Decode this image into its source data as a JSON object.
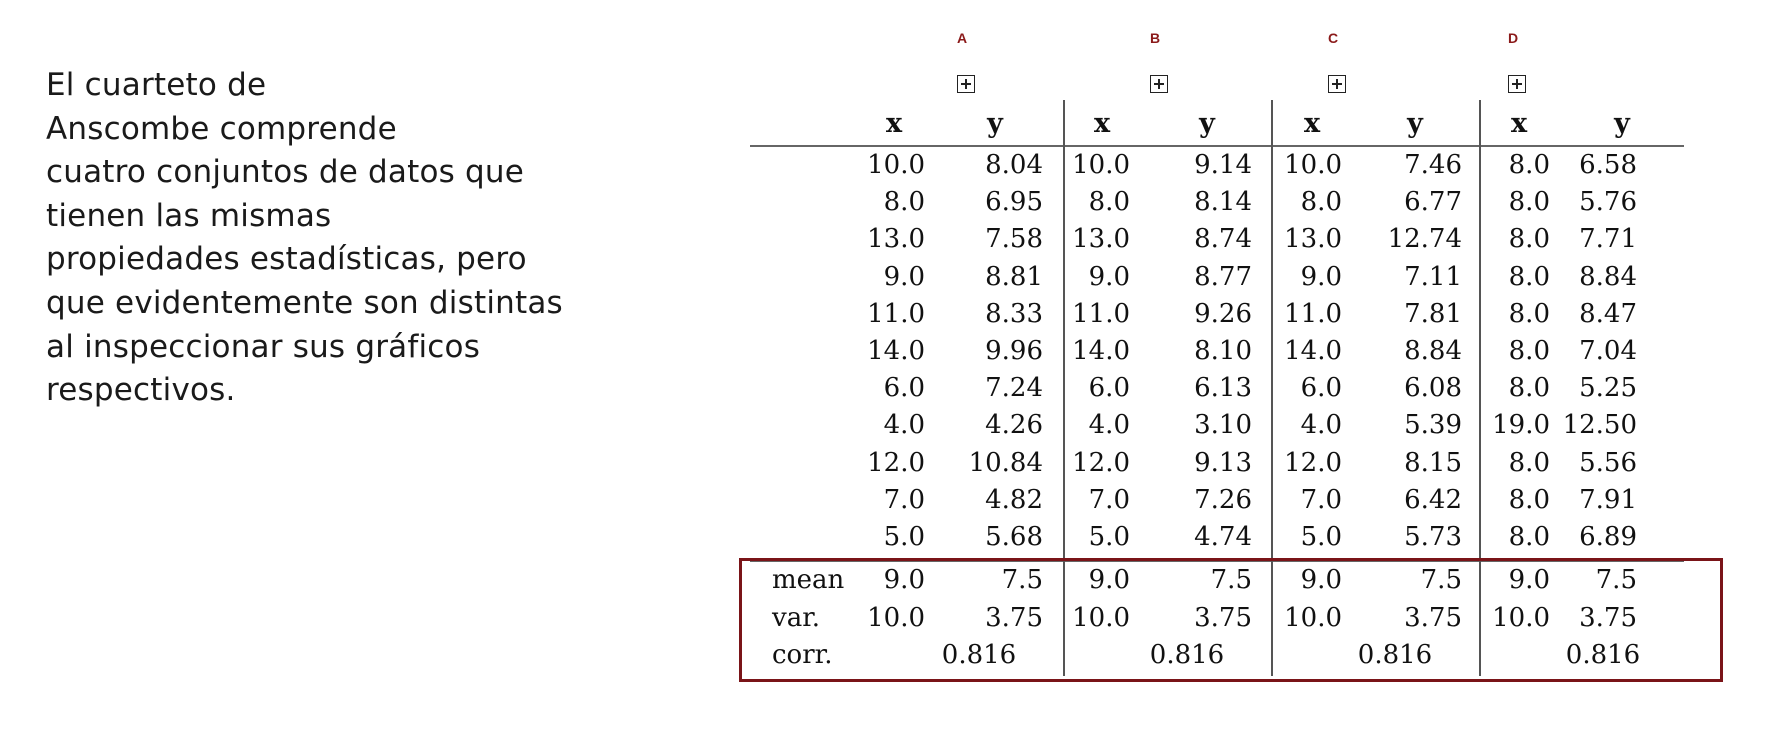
{
  "intro_lines": [
    "El cuarteto de",
    "Anscombe comprende",
    "cuatro conjuntos de datos que",
    "tienen las mismas",
    "propiedades estadísticas, pero",
    "que evidentemente son distintas",
    "al inspeccionar sus gráficos",
    "respectivos."
  ],
  "sets": [
    "A",
    "B",
    "C",
    "D"
  ],
  "icons": {
    "expand": "expand-plus-box-icon"
  },
  "table": {
    "headers": [
      "x",
      "y",
      "x",
      "y",
      "x",
      "y",
      "x",
      "y"
    ],
    "rows": [
      [
        "10.0",
        "8.04",
        "10.0",
        "9.14",
        "10.0",
        "7.46",
        "8.0",
        "6.58"
      ],
      [
        "8.0",
        "6.95",
        "8.0",
        "8.14",
        "8.0",
        "6.77",
        "8.0",
        "5.76"
      ],
      [
        "13.0",
        "7.58",
        "13.0",
        "8.74",
        "13.0",
        "12.74",
        "8.0",
        "7.71"
      ],
      [
        "9.0",
        "8.81",
        "9.0",
        "8.77",
        "9.0",
        "7.11",
        "8.0",
        "8.84"
      ],
      [
        "11.0",
        "8.33",
        "11.0",
        "9.26",
        "11.0",
        "7.81",
        "8.0",
        "8.47"
      ],
      [
        "14.0",
        "9.96",
        "14.0",
        "8.10",
        "14.0",
        "8.84",
        "8.0",
        "7.04"
      ],
      [
        "6.0",
        "7.24",
        "6.0",
        "6.13",
        "6.0",
        "6.08",
        "8.0",
        "5.25"
      ],
      [
        "4.0",
        "4.26",
        "4.0",
        "3.10",
        "4.0",
        "5.39",
        "19.0",
        "12.50"
      ],
      [
        "12.0",
        "10.84",
        "12.0",
        "9.13",
        "12.0",
        "8.15",
        "8.0",
        "5.56"
      ],
      [
        "7.0",
        "4.82",
        "7.0",
        "7.26",
        "7.0",
        "6.42",
        "8.0",
        "7.91"
      ],
      [
        "5.0",
        "5.68",
        "5.0",
        "4.74",
        "5.0",
        "5.73",
        "8.0",
        "6.89"
      ]
    ],
    "stats": [
      {
        "label": "mean",
        "values": [
          "9.0",
          "7.5",
          "9.0",
          "7.5",
          "9.0",
          "7.5",
          "9.0",
          "7.5"
        ]
      },
      {
        "label": "var.",
        "values": [
          "10.0",
          "3.75",
          "10.0",
          "3.75",
          "10.0",
          "3.75",
          "10.0",
          "3.75"
        ]
      }
    ],
    "corr": {
      "label": "corr.",
      "values": [
        "0.816",
        "0.816",
        "0.816",
        "0.816"
      ]
    }
  },
  "colors": {
    "accent_box": "#7a1418",
    "set_letter": "#8b1a1a"
  }
}
